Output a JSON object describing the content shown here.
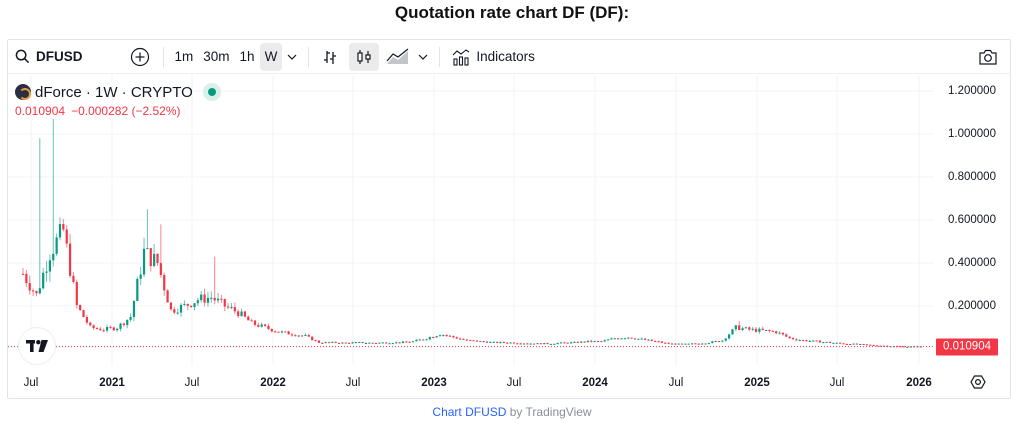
{
  "page": {
    "title": "Quotation rate chart DF (DF):"
  },
  "toolbar": {
    "symbol": "DFUSD",
    "timeframes": [
      "1m",
      "30m",
      "1h",
      "W"
    ],
    "active_timeframe": "W",
    "indicators_label": "Indicators"
  },
  "legend": {
    "name": "dForce · 1W · CRYPTO",
    "last_price": "0.010904",
    "change": "−0.000282 (−2.52%)"
  },
  "footer": {
    "link_text": "Chart DFUSD",
    "suffix": " by TradingView"
  },
  "colors": {
    "up": "#089981",
    "down": "#f23645",
    "grid": "#f2f3f5",
    "price_line": "#f23645",
    "link": "#2962ff"
  },
  "chart_data": {
    "type": "candlestick",
    "title": "dForce · 1W · CRYPTO",
    "symbol": "DFUSD",
    "interval": "1W",
    "last_value": 0.010904,
    "change": -0.000282,
    "change_pct": -2.52,
    "ylabel": "",
    "xlabel": "",
    "ylim": [
      0,
      1.3
    ],
    "y_ticks": [
      "1.200000",
      "1.000000",
      "0.800000",
      "0.600000",
      "0.400000",
      "0.200000"
    ],
    "x_ticks": [
      "Jul",
      "2021",
      "Jul",
      "2022",
      "Jul",
      "2023",
      "Jul",
      "2024",
      "Jul",
      "2025",
      "Jul",
      "2026"
    ],
    "grid": true,
    "approx_weekly_close_by_period": {
      "x": [
        "2020-Jul",
        "2020-Aug",
        "2020-Sep",
        "2020-Oct",
        "2020-Nov",
        "2020-Dec",
        "2021-Jan",
        "2021-Feb",
        "2021-Mar",
        "2021-Apr",
        "2021-May",
        "2021-Jun",
        "2021-Jul",
        "2021-Aug",
        "2021-Sep",
        "2021-Oct",
        "2021-Nov",
        "2021-Dec",
        "2022-Jan",
        "2022-Feb",
        "2022-Mar",
        "2022-Apr",
        "2022-May",
        "2022-Jun",
        "2022-Jul",
        "2022-Aug",
        "2022-Sep",
        "2022-Oct",
        "2022-Nov",
        "2022-Dec",
        "2023-Jan",
        "2023-Feb",
        "2023-Mar",
        "2023-Apr",
        "2023-May",
        "2023-Jun",
        "2023-Jul",
        "2023-Aug",
        "2023-Sep",
        "2023-Oct",
        "2023-Nov",
        "2023-Dec",
        "2024-Jan",
        "2024-Feb",
        "2024-Mar",
        "2024-Apr",
        "2024-May",
        "2024-Jun",
        "2024-Jul",
        "2024-Aug",
        "2024-Sep",
        "2024-Oct",
        "2024-Nov",
        "2024-Dec",
        "2025-Jan",
        "2025-Feb",
        "2025-Mar",
        "2025-Apr",
        "2025-May",
        "2025-Jun",
        "2025-Jul",
        "2025-Aug",
        "2025-Sep",
        "2025-Oct",
        "2025-Nov",
        "2025-Dec",
        "2026-Jan"
      ],
      "values": [
        0.35,
        0.25,
        0.45,
        0.55,
        0.2,
        0.1,
        0.09,
        0.1,
        0.15,
        0.45,
        0.4,
        0.18,
        0.2,
        0.23,
        0.24,
        0.2,
        0.17,
        0.12,
        0.1,
        0.08,
        0.07,
        0.06,
        0.03,
        0.03,
        0.028,
        0.03,
        0.028,
        0.03,
        0.03,
        0.035,
        0.05,
        0.07,
        0.055,
        0.04,
        0.035,
        0.03,
        0.03,
        0.028,
        0.025,
        0.025,
        0.028,
        0.03,
        0.035,
        0.035,
        0.05,
        0.055,
        0.045,
        0.035,
        0.025,
        0.022,
        0.025,
        0.03,
        0.04,
        0.1,
        0.09,
        0.085,
        0.08,
        0.05,
        0.04,
        0.035,
        0.03,
        0.025,
        0.022,
        0.018,
        0.015,
        0.012,
        0.0109
      ]
    },
    "notable_highs": [
      {
        "x": "2020-Aug",
        "value": 0.98
      },
      {
        "x": "2020-Sep",
        "value": 1.07
      },
      {
        "x": "2021-Apr",
        "value": 0.65
      },
      {
        "x": "2021-May",
        "value": 0.58
      },
      {
        "x": "2021-Sep",
        "value": 0.43
      },
      {
        "x": "2024-Dec",
        "value": 0.13
      }
    ]
  }
}
